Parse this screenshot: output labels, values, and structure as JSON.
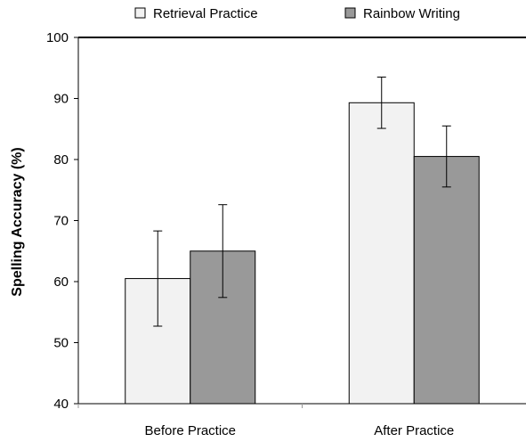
{
  "chart_data": {
    "type": "bar",
    "categories": [
      "Before Practice",
      "After Practice"
    ],
    "series": [
      {
        "name": "Retrieval Practice",
        "values": [
          60.5,
          89.3
        ],
        "error": [
          7.8,
          4.2
        ],
        "color": "#f2f2f2"
      },
      {
        "name": "Rainbow Writing",
        "values": [
          65.0,
          80.5
        ],
        "error": [
          7.6,
          5.0
        ],
        "color": "#999999"
      }
    ],
    "ylabel": "Spelling Accuracy (%)",
    "xlabel": "",
    "ylim": [
      40,
      100
    ],
    "yticks": [
      40,
      50,
      60,
      70,
      80,
      90,
      100
    ],
    "legend_position": "top",
    "grid": false
  }
}
